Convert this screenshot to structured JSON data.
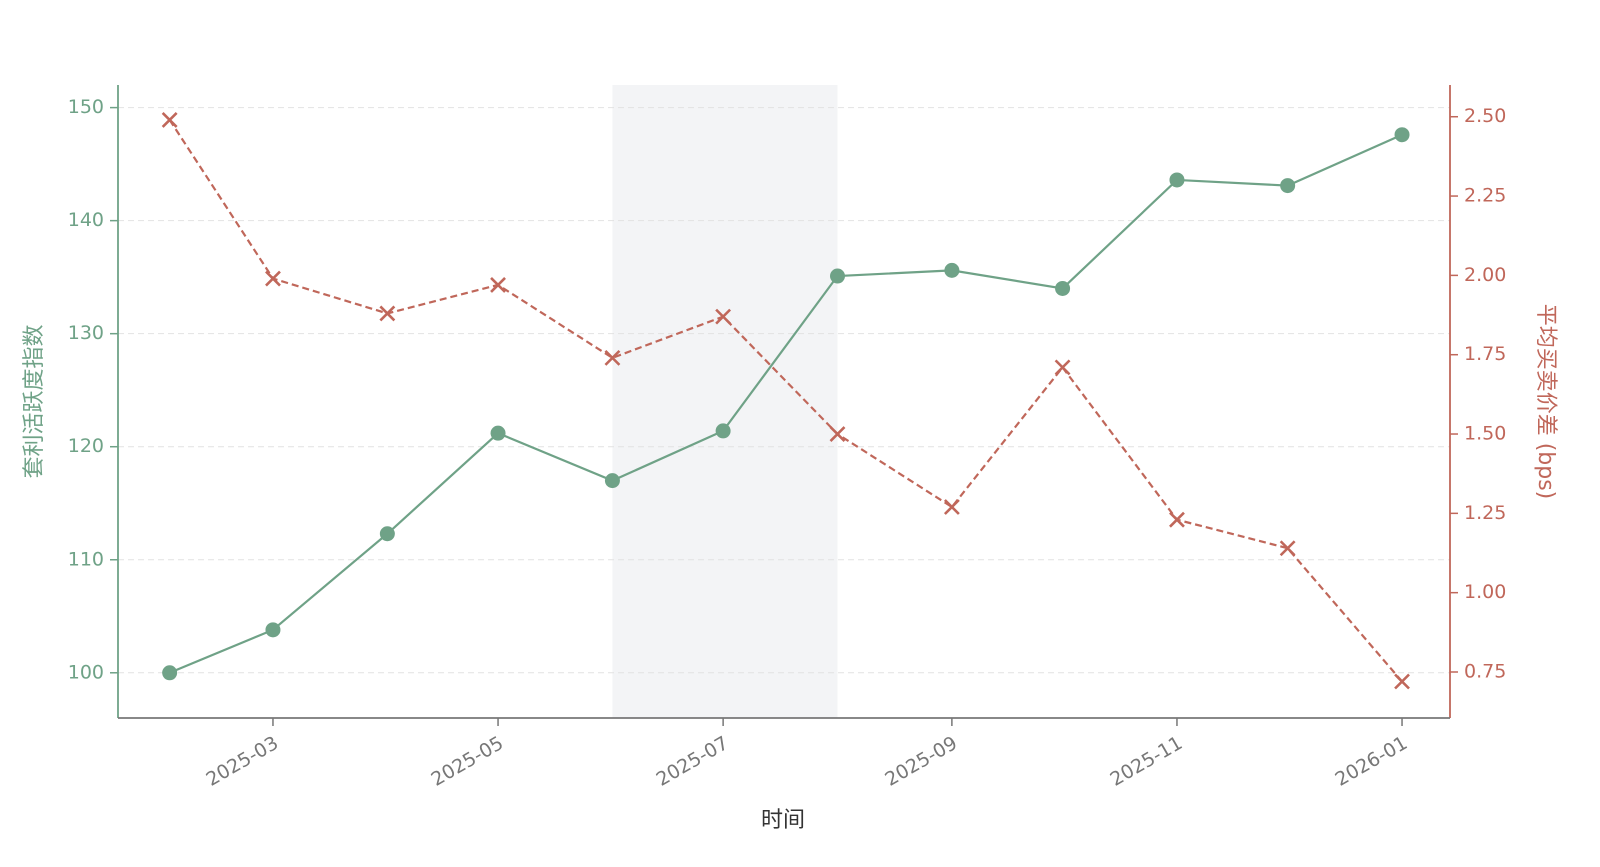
{
  "chart_data": {
    "type": "line",
    "x": [
      "2025-02",
      "2025-03",
      "2025-04",
      "2025-05",
      "2025-06",
      "2025-07",
      "2025-08",
      "2025-09",
      "2025-10",
      "2025-11",
      "2025-12",
      "2026-01"
    ],
    "xlim": [
      "2025-01-18",
      "2026-01-14"
    ],
    "xticks": [
      "2025-03",
      "2025-05",
      "2025-07",
      "2025-09",
      "2025-11",
      "2026-01"
    ],
    "xlabel": "时间",
    "ylabel": "套利活跃度指数",
    "y2label": "平均买卖价差 (bps)",
    "ylim": [
      96,
      152
    ],
    "yticks": [
      100,
      110,
      120,
      130,
      140,
      150
    ],
    "y2lim": [
      0.605,
      2.6
    ],
    "y2ticks": [
      {
        "value": 0.75,
        "label": "0.75"
      },
      {
        "value": 1.0,
        "label": "1.00"
      },
      {
        "value": 1.25,
        "label": "1.25"
      },
      {
        "value": 1.5,
        "label": "1.50"
      },
      {
        "value": 1.75,
        "label": "1.75"
      },
      {
        "value": 2.0,
        "label": "2.00"
      },
      {
        "value": 2.25,
        "label": "2.25"
      },
      {
        "value": 2.5,
        "label": "2.50"
      }
    ],
    "grid": true,
    "shade": [
      "2025-06",
      "2025-08"
    ],
    "series": [
      {
        "name": "套利活跃度指数",
        "color": "#6fa287",
        "marker": "circle",
        "dash": false,
        "values": [
          100,
          103.8,
          112.3,
          121.2,
          117.0,
          121.4,
          135.1,
          135.6,
          134.0,
          143.6,
          143.1,
          147.6
        ]
      },
      {
        "name": "平均买卖价差 (bps)",
        "color": "#c0675a",
        "marker": "x",
        "dash": true,
        "axis": "y2",
        "values": [
          2.49,
          1.99,
          1.88,
          1.97,
          1.74,
          1.87,
          1.5,
          1.27,
          1.71,
          1.23,
          1.14,
          0.72
        ]
      }
    ]
  }
}
